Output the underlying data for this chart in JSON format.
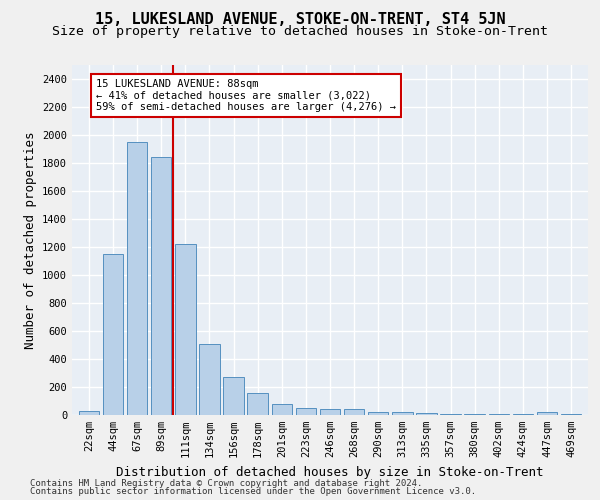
{
  "title": "15, LUKESLAND AVENUE, STOKE-ON-TRENT, ST4 5JN",
  "subtitle": "Size of property relative to detached houses in Stoke-on-Trent",
  "xlabel": "Distribution of detached houses by size in Stoke-on-Trent",
  "ylabel": "Number of detached properties",
  "footnote1": "Contains HM Land Registry data © Crown copyright and database right 2024.",
  "footnote2": "Contains public sector information licensed under the Open Government Licence v3.0.",
  "categories": [
    "22sqm",
    "44sqm",
    "67sqm",
    "89sqm",
    "111sqm",
    "134sqm",
    "156sqm",
    "178sqm",
    "201sqm",
    "223sqm",
    "246sqm",
    "268sqm",
    "290sqm",
    "313sqm",
    "335sqm",
    "357sqm",
    "380sqm",
    "402sqm",
    "424sqm",
    "447sqm",
    "469sqm"
  ],
  "values": [
    30,
    1150,
    1950,
    1840,
    1220,
    510,
    275,
    155,
    80,
    50,
    45,
    40,
    25,
    20,
    15,
    5,
    5,
    5,
    5,
    20,
    5
  ],
  "bar_color": "#b8d0e8",
  "bar_edge_color": "#5590c0",
  "property_line_x": 3.5,
  "annotation_text": "15 LUKESLAND AVENUE: 88sqm\n← 41% of detached houses are smaller (3,022)\n59% of semi-detached houses are larger (4,276) →",
  "annotation_box_color": "#ffffff",
  "annotation_box_edge_color": "#cc0000",
  "vline_color": "#cc0000",
  "ylim": [
    0,
    2500
  ],
  "yticks": [
    0,
    200,
    400,
    600,
    800,
    1000,
    1200,
    1400,
    1600,
    1800,
    2000,
    2200,
    2400
  ],
  "bg_color": "#e8eef5",
  "grid_color": "#ffffff",
  "title_fontsize": 11,
  "subtitle_fontsize": 9.5,
  "axis_label_fontsize": 9,
  "tick_fontsize": 7.5,
  "footnote_fontsize": 6.5
}
